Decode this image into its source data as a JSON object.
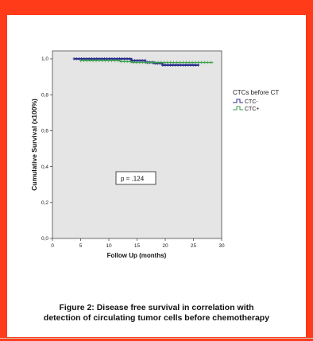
{
  "caption": {
    "line1": "Figure 2: Disease free survival  in correlation with",
    "line2": "detection of circulating tumor cells before chemotherapy"
  },
  "chart_data": {
    "type": "line",
    "title": "",
    "xlabel": "Follow Up (months)",
    "ylabel": "Cumulative Survival (x100%)",
    "xlim": [
      0,
      30
    ],
    "ylim": [
      0.0,
      1.0
    ],
    "x_ticks": [
      "0",
      "5",
      "10",
      "15",
      "20",
      "25",
      "30"
    ],
    "y_ticks": [
      "0,0",
      "0,2",
      "0,4",
      "0,6",
      "0,8",
      "1,0"
    ],
    "annotation": "p = .124",
    "legend_title": "CTCs before CT",
    "legend_placement": "right",
    "series": [
      {
        "name": "CTC-",
        "color": "#2b2f8f",
        "x": [
          3.8,
          5.0,
          13.0,
          14.0,
          16.5,
          18.0,
          19.5,
          26.0
        ],
        "y": [
          1.0,
          1.0,
          1.0,
          0.99,
          0.98,
          0.975,
          0.965,
          0.965
        ]
      },
      {
        "name": "CTC+",
        "color": "#3ca04a",
        "x": [
          5.0,
          6.0,
          10.0,
          12.0,
          14.0,
          16.0,
          28.5
        ],
        "y": [
          0.99,
          0.99,
          0.99,
          0.985,
          0.98,
          0.98,
          0.98
        ]
      }
    ]
  }
}
